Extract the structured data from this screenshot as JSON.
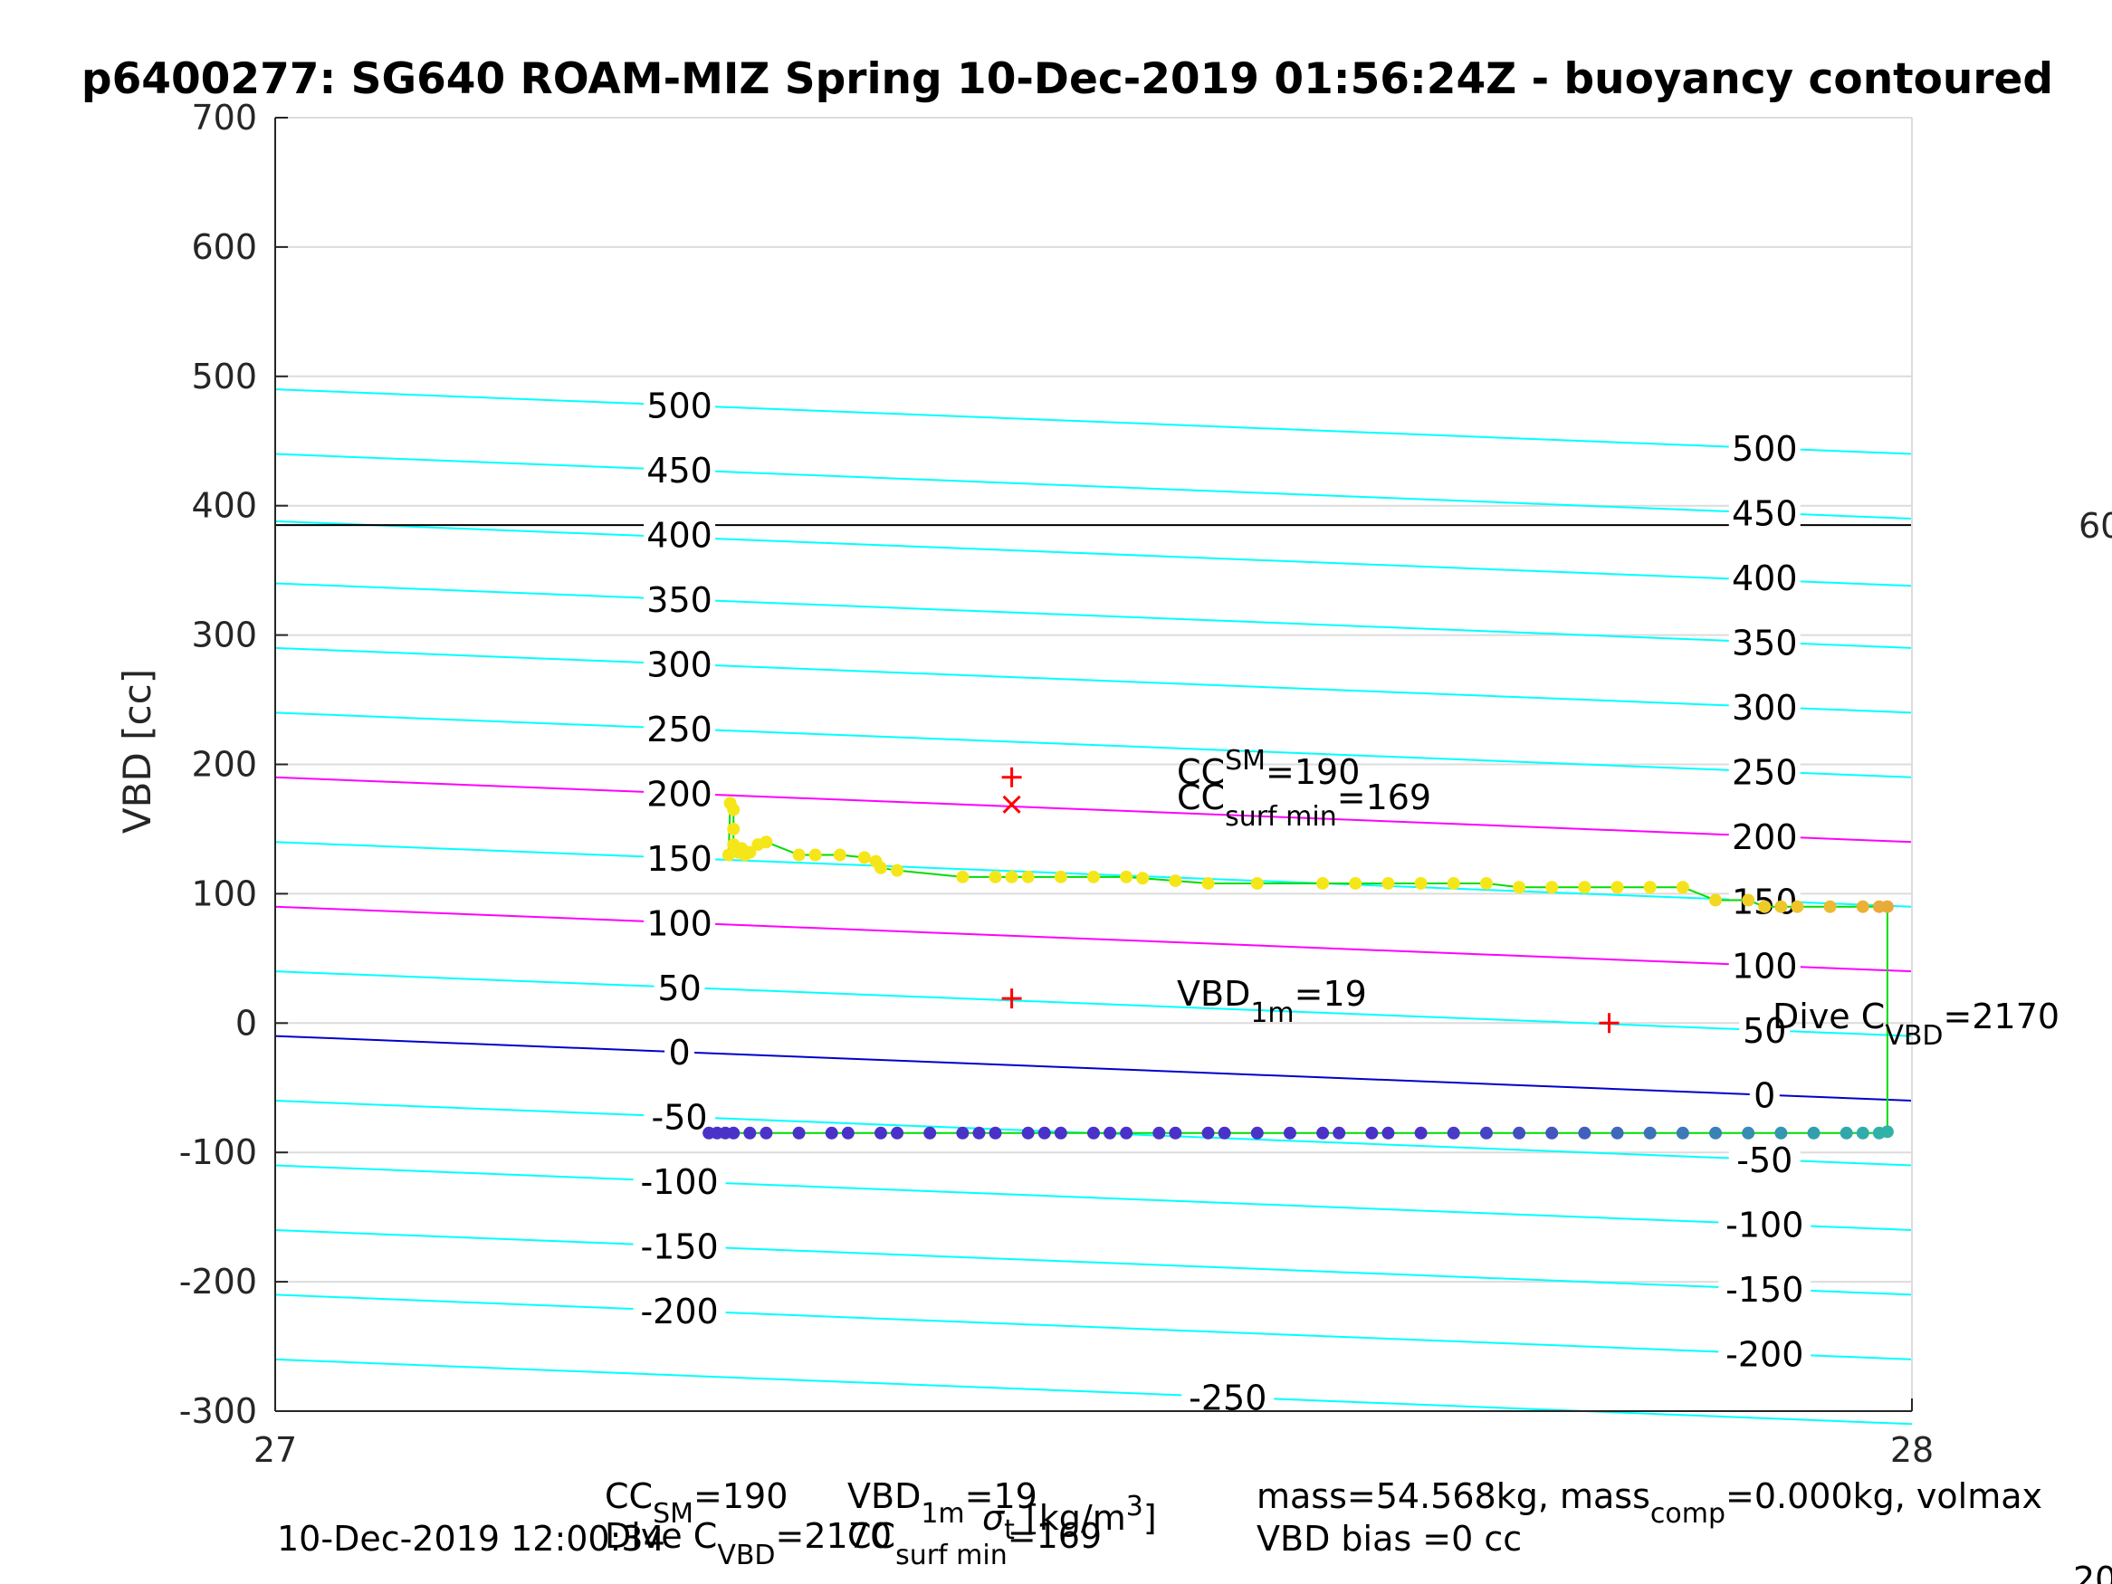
{
  "chart_data": {
    "type": "scatter",
    "title": "p6400277: SG640 ROAM-MIZ Spring 10-Dec-2019 01:56:24Z - buoyancy contoured",
    "ylabel": "VBD [cc]",
    "xlabel_parts": [
      "σ",
      "t",
      " [kg/m",
      "3",
      "]"
    ],
    "xlim": [
      27,
      28
    ],
    "ylim": [
      -300,
      700
    ],
    "x_ticks": [
      "27",
      "28"
    ],
    "y_ticks": [
      "-300",
      "-200",
      "-100",
      "0",
      "100",
      "200",
      "300",
      "400",
      "500",
      "600",
      "700"
    ],
    "grid": true,
    "colors": {
      "contour": "#00ffff",
      "contour_highlight": "#ff00ff",
      "zero_contour": "#0000cc",
      "ref_line": "#000000",
      "path": "#00dd00",
      "marker": "#ff0000",
      "points_upper_start": "#f5e61a",
      "points_upper_end": "#e8a83a",
      "points_lower_start": "#4a32c8",
      "points_lower_end": "#2fb5a8"
    },
    "horizontal_reference_line": 385,
    "right_edge_label": "60",
    "contours": {
      "y_at_left": [
        490,
        440,
        388,
        340,
        290,
        240,
        190,
        140,
        90,
        40,
        -10,
        -60,
        -110,
        -160,
        -210,
        -260
      ],
      "slope_per_unit_x": -50,
      "highlight_levels": [
        200,
        100
      ],
      "zero_level": 0,
      "left_labels": [
        {
          "text": "500",
          "level": 500
        },
        {
          "text": "450",
          "level": 450
        },
        {
          "text": "400",
          "level": 400
        },
        {
          "text": "350",
          "level": 350
        },
        {
          "text": "300",
          "level": 300
        },
        {
          "text": "250",
          "level": 250
        },
        {
          "text": "200",
          "level": 200
        },
        {
          "text": "150",
          "level": 150
        },
        {
          "text": "100",
          "level": 100
        },
        {
          "text": "50",
          "level": 50
        },
        {
          "text": "0",
          "level": 0
        },
        {
          "text": "-50",
          "level": -50
        },
        {
          "text": "-100",
          "level": -100
        },
        {
          "text": "-150",
          "level": -150
        },
        {
          "text": "-200",
          "level": -200
        }
      ],
      "right_labels": [
        {
          "text": "500",
          "level": 500
        },
        {
          "text": "450",
          "level": 450
        },
        {
          "text": "400",
          "level": 400
        },
        {
          "text": "350",
          "level": 350
        },
        {
          "text": "300",
          "level": 300
        },
        {
          "text": "250",
          "level": 250
        },
        {
          "text": "200",
          "level": 200
        },
        {
          "text": "150",
          "level": 150
        },
        {
          "text": "100",
          "level": 100
        },
        {
          "text": "50",
          "level": 50
        },
        {
          "text": "0",
          "level": 0
        },
        {
          "text": "-50",
          "level": -50
        },
        {
          "text": "-100",
          "level": -100
        },
        {
          "text": "-150",
          "level": -150
        },
        {
          "text": "-200",
          "level": -200
        }
      ],
      "bottom_label": {
        "text": "-250",
        "level": -250
      }
    },
    "series_upper": {
      "x": [
        27.277,
        27.278,
        27.28,
        27.28,
        27.28,
        27.283,
        27.285,
        27.287,
        27.29,
        27.295,
        27.3,
        27.32,
        27.33,
        27.345,
        27.36,
        27.367,
        27.37,
        27.38,
        27.42,
        27.44,
        27.45,
        27.46,
        27.48,
        27.5,
        27.52,
        27.53,
        27.55,
        27.57,
        27.6,
        27.64,
        27.66,
        27.68,
        27.7,
        27.72,
        27.74,
        27.76,
        27.78,
        27.8,
        27.82,
        27.84,
        27.86,
        27.88,
        27.9,
        27.91,
        27.92,
        27.93,
        27.95,
        27.97,
        27.98,
        27.985
      ],
      "y": [
        130,
        170,
        165,
        150,
        138,
        132,
        135,
        130,
        132,
        138,
        140,
        130,
        130,
        130,
        128,
        125,
        120,
        118,
        113,
        113,
        113,
        113,
        113,
        113,
        113,
        112,
        110,
        108,
        108,
        108,
        108,
        108,
        108,
        108,
        108,
        105,
        105,
        105,
        105,
        105,
        105,
        95,
        95,
        90,
        90,
        90,
        90,
        90,
        90,
        90
      ]
    },
    "series_lower": {
      "x": [
        27.265,
        27.27,
        27.275,
        27.28,
        27.29,
        27.3,
        27.32,
        27.34,
        27.35,
        27.37,
        27.38,
        27.4,
        27.42,
        27.43,
        27.44,
        27.46,
        27.47,
        27.48,
        27.5,
        27.51,
        27.52,
        27.54,
        27.55,
        27.57,
        27.58,
        27.6,
        27.62,
        27.64,
        27.65,
        27.67,
        27.68,
        27.7,
        27.72,
        27.74,
        27.76,
        27.78,
        27.8,
        27.82,
        27.84,
        27.86,
        27.88,
        27.9,
        27.92,
        27.94,
        27.96,
        27.97,
        27.98,
        27.985
      ],
      "y": [
        -85,
        -85,
        -85,
        -85,
        -85,
        -85,
        -85,
        -85,
        -85,
        -85,
        -85,
        -85,
        -85,
        -85,
        -85,
        -85,
        -85,
        -85,
        -85,
        -85,
        -85,
        -85,
        -85,
        -85,
        -85,
        -85,
        -85,
        -85,
        -85,
        -85,
        -85,
        -85,
        -85,
        -85,
        -85,
        -85,
        -85,
        -85,
        -85,
        -85,
        -85,
        -85,
        -85,
        -85,
        -85,
        -85,
        -85,
        -84
      ]
    },
    "markers": [
      {
        "shape": "plus",
        "x": 27.45,
        "y": 190
      },
      {
        "shape": "x",
        "x": 27.45,
        "y": 169
      },
      {
        "shape": "plus",
        "x": 27.45,
        "y": 19
      },
      {
        "shape": "plus",
        "x": 27.815,
        "y": 0
      }
    ],
    "annotations": {
      "cc_sm": {
        "main": "CC",
        "sub": "SM",
        "tail": "=190"
      },
      "cc_surf_min": {
        "main": "CC",
        "sub": "surf min",
        "tail": "=169"
      },
      "vbd_1m": {
        "main": "VBD",
        "sub": "1m",
        "tail": "=19"
      },
      "dive_c_vbd": {
        "main": "Dive C",
        "sub": "VBD",
        "tail": "=2170"
      }
    },
    "footer": {
      "timestamp": "10-Dec-2019 12:00:34",
      "left_line1": {
        "main": "CC",
        "sub": "SM",
        "tail": "=190"
      },
      "left_line2": {
        "main": "Dive C",
        "sub": "VBD",
        "tail": "=2170"
      },
      "mid_line1": {
        "main": "VBD",
        "sub": "1m",
        "tail": "=19"
      },
      "mid_line2": {
        "main": "CC",
        "sub": "surf min",
        "tail": "=169"
      },
      "right_line1_a": "mass=54.568kg, mass",
      "right_line1_sub": "comp",
      "right_line1_b": "=0.000kg, volmax",
      "right_line2": "VBD bias =0 cc",
      "corner_fragment": "20"
    }
  }
}
